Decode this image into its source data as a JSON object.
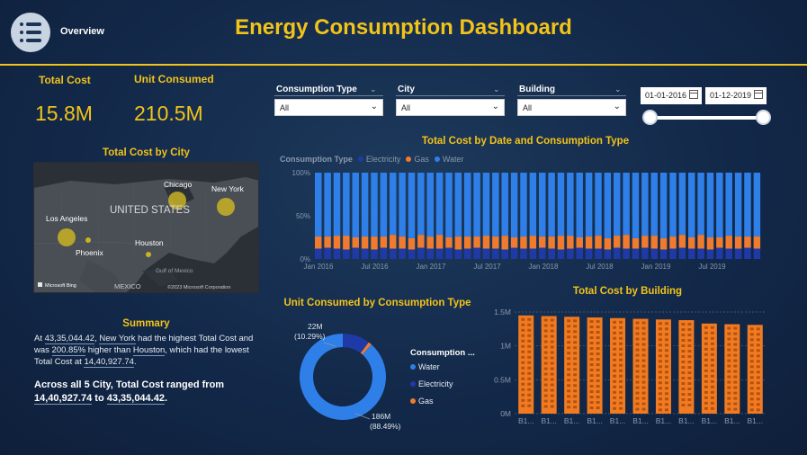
{
  "header": {
    "overview_label": "Overview",
    "title": "Energy Consumption Dashboard"
  },
  "kpis": [
    {
      "label": "Total Cost",
      "value": "15.8M"
    },
    {
      "label": "Unit Consumed",
      "value": "210.5M"
    }
  ],
  "slicers": [
    {
      "label": "Consumption Type",
      "value": "All"
    },
    {
      "label": "City",
      "value": "All"
    },
    {
      "label": "Building",
      "value": "All"
    }
  ],
  "date_range": {
    "start": "01-01-2016",
    "end": "01-12-2019",
    "start_fraction": 0,
    "end_fraction": 1
  },
  "map": {
    "title": "Total Cost by City",
    "country_label": "UNITED STATES",
    "mexico_label": "MEXICO",
    "gulf_label": "Gulf of Mexico",
    "bing_label": "Microsoft Bing",
    "copyright": "©2023 Microsoft Corporation",
    "cities": [
      {
        "name": "Chicago"
      },
      {
        "name": "New York"
      },
      {
        "name": "Los Angeles"
      },
      {
        "name": "Phoenix"
      },
      {
        "name": "Houston"
      }
    ]
  },
  "summary": {
    "title": "Summary",
    "p1": "At ",
    "v1": "43,35,044.42",
    "p2": ", ",
    "city1": "New York",
    "p3": " had the highest Total Cost and was ",
    "v2": "200.85%",
    "p4": " higher than ",
    "city2": "Houston",
    "p5": ", which had the lowest Total Cost at ",
    "v3": "14,40,927.74",
    "p6": ".",
    "b1": "Across all 5 City, Total Cost ranged from ",
    "b2": "14,40,927.74",
    "b3": " to ",
    "b4": "43,35,044.42",
    "b5": "."
  },
  "colors": {
    "water": "#2f7fe8",
    "electricity": "#1f3aa6",
    "gas": "#f07b2e",
    "accent": "#f2c318"
  },
  "chart_data": [
    {
      "type": "bar",
      "stacked": "percent",
      "title": "Total Cost by Date and Consumption Type",
      "legend_title": "Consumption Type",
      "series_names": [
        "Electricity",
        "Gas",
        "Water"
      ],
      "y_ticks": [
        "100%",
        "50%",
        "0%"
      ],
      "x_ticks": [
        "Jan 2016",
        "Jul 2016",
        "Jan 2017",
        "Jul 2017",
        "Jan 2018",
        "Jul 2018",
        "Jan 2019",
        "Jul 2019"
      ],
      "electricity_pct": [
        12,
        13,
        12,
        11,
        13,
        12,
        11,
        13,
        12,
        12,
        11,
        13,
        12,
        12,
        13,
        11,
        12,
        13,
        12,
        12,
        11,
        13,
        12,
        12,
        13,
        12,
        11,
        12,
        13,
        12,
        12,
        11,
        13,
        12,
        12,
        13,
        12,
        11,
        12,
        13,
        12,
        12,
        11,
        13,
        12,
        12,
        13,
        12
      ],
      "gas_pct": [
        14,
        13,
        15,
        16,
        12,
        14,
        15,
        13,
        16,
        14,
        13,
        15,
        14,
        16,
        12,
        15,
        14,
        13,
        15,
        14,
        16,
        12,
        14,
        15,
        13,
        14,
        16,
        15,
        12,
        14,
        15,
        13,
        14,
        16,
        12,
        14,
        15,
        13,
        14,
        15,
        13,
        16,
        14,
        12,
        15,
        14,
        13,
        14
      ]
    },
    {
      "type": "pie",
      "donut": true,
      "title": "Unit Consumed by Consumption Type",
      "legend_title": "Consumption ...",
      "slices": [
        {
          "name": "Water",
          "value": 186,
          "label": "186M",
          "pct_label": "(88.49%)"
        },
        {
          "name": "Electricity",
          "value": 21.6,
          "label": "22M",
          "pct_label": "(10.29%)"
        },
        {
          "name": "Gas",
          "value": 2.6
        }
      ]
    },
    {
      "type": "bar",
      "title": "Total Cost by Building",
      "y_ticks": [
        "1.5M",
        "1M",
        "0.5M",
        "0M"
      ],
      "ylim": [
        0,
        1.5
      ],
      "categories": [
        "B1...",
        "B1...",
        "B1...",
        "B1...",
        "B1...",
        "B1...",
        "B1...",
        "B1...",
        "B1...",
        "B1...",
        "B1..."
      ],
      "values": [
        1.45,
        1.44,
        1.43,
        1.42,
        1.41,
        1.4,
        1.39,
        1.38,
        1.33,
        1.32,
        1.31
      ]
    }
  ]
}
